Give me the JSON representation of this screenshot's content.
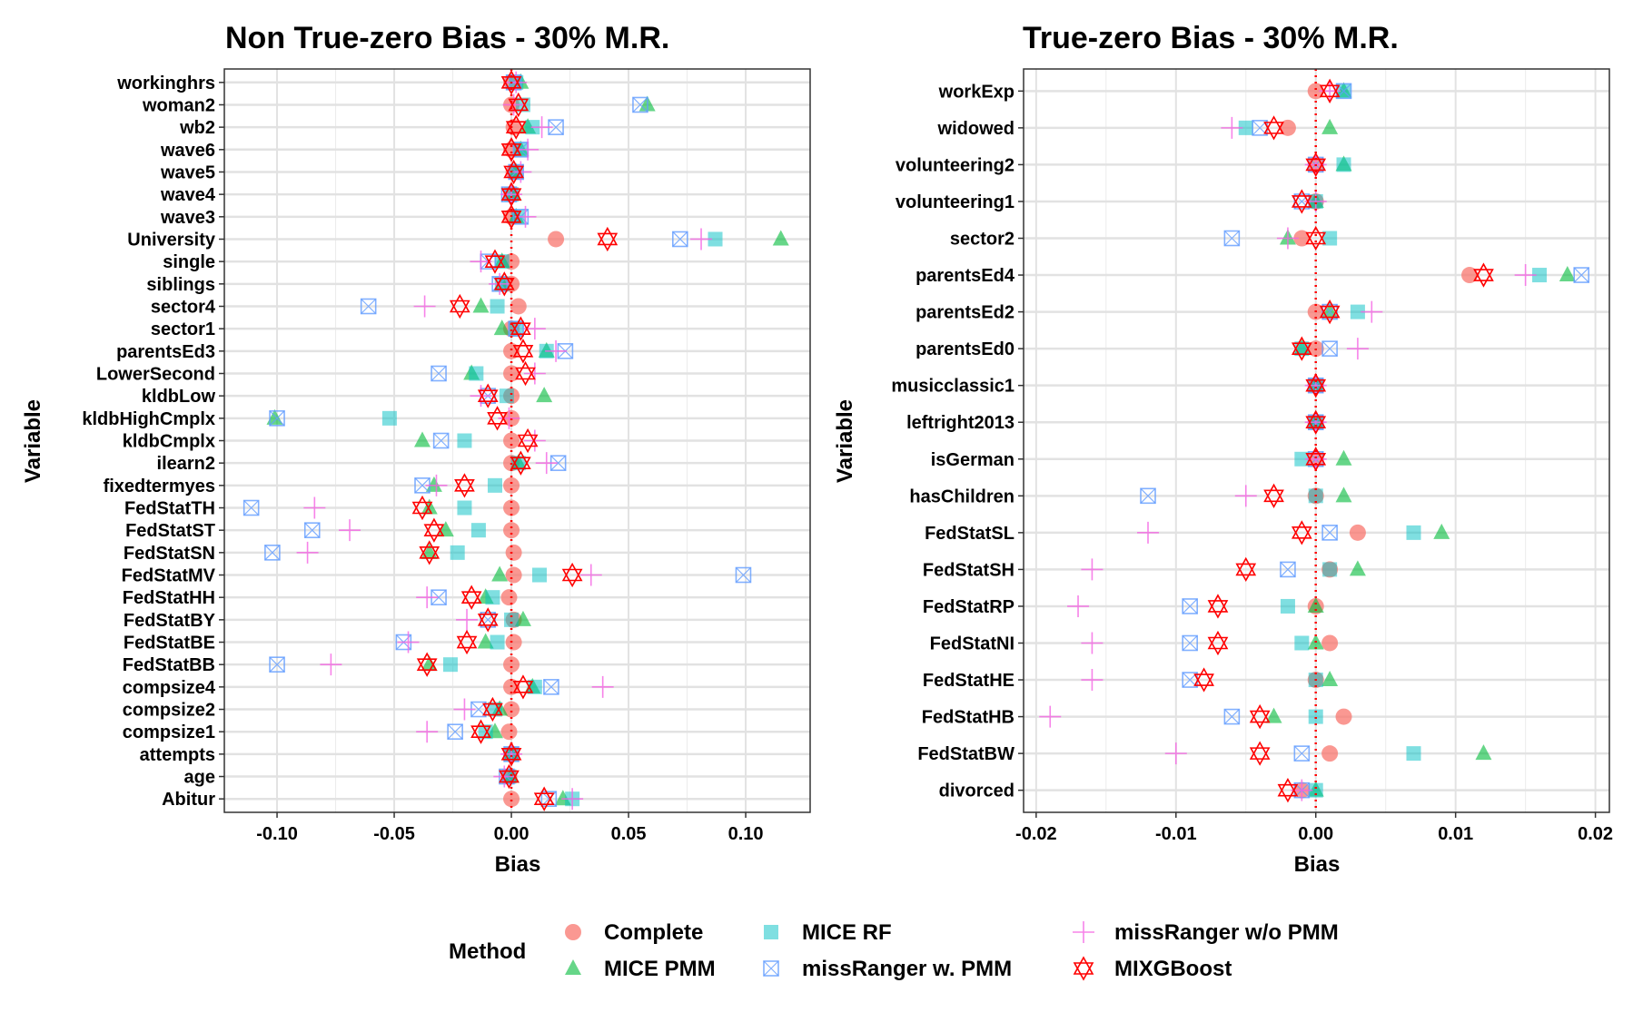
{
  "legend": {
    "title": "Method",
    "position": "bottom",
    "entries": [
      {
        "key": "complete",
        "label": "Complete",
        "shape": "circle",
        "color": "#F8766D"
      },
      {
        "key": "pmm",
        "label": "MICE PMM",
        "shape": "triangle",
        "color": "#00BA38"
      },
      {
        "key": "rf",
        "label": "MICE RF",
        "shape": "square",
        "color": "#00BFC4"
      },
      {
        "key": "mrpmm",
        "label": "missRanger w. PMM",
        "shape": "square-x",
        "color": "#619CFF"
      },
      {
        "key": "mrnopmm",
        "label": "missRanger w/o PMM",
        "shape": "plus",
        "color": "#F564E3"
      },
      {
        "key": "mixgb",
        "label": "MIXGBoost",
        "shape": "star-of-david",
        "color": "#FF0000"
      }
    ]
  },
  "chart_data": [
    {
      "type": "scatter",
      "title": "Non True-zero Bias - 30% M.R.",
      "xlabel": "Bias",
      "ylabel": "Variable",
      "xlim": [
        -0.1225,
        0.1275
      ],
      "xticks": [
        -0.1,
        -0.05,
        0.0,
        0.05,
        0.1
      ],
      "xtick_labels": [
        "-0.10",
        "-0.05",
        "0.00",
        "0.05",
        "0.10"
      ],
      "reference_line": {
        "x": 0,
        "color": "#FF0000",
        "style": "dotted"
      },
      "grid": true,
      "series_order": [
        "complete",
        "pmm",
        "rf",
        "mrpmm",
        "mrnopmm",
        "mixgb"
      ],
      "rows": [
        {
          "variable": "workinghrs",
          "values": [
            0,
            0.004,
            0.002,
            0.001,
            0.002,
            0
          ]
        },
        {
          "variable": "woman2",
          "values": [
            0,
            0.058,
            0.005,
            0.055,
            0.001,
            0.003
          ]
        },
        {
          "variable": "wb2",
          "values": [
            0.001,
            0.007,
            0.009,
            0.019,
            0.013,
            0.002
          ]
        },
        {
          "variable": "wave6",
          "values": [
            0,
            0.004,
            0.004,
            0.004,
            0.007,
            0
          ]
        },
        {
          "variable": "wave5",
          "values": [
            0.001,
            0.002,
            0.002,
            0.002,
            0.004,
            0.001
          ]
        },
        {
          "variable": "wave4",
          "values": [
            0,
            0.001,
            0,
            -0.001,
            0,
            0
          ]
        },
        {
          "variable": "wave3",
          "values": [
            0,
            0.002,
            0.003,
            0.004,
            0.006,
            0
          ]
        },
        {
          "variable": "University",
          "values": [
            0.019,
            0.115,
            0.087,
            0.072,
            0.081,
            0.041
          ]
        },
        {
          "variable": "single",
          "values": [
            0,
            -0.004,
            -0.004,
            -0.01,
            -0.013,
            -0.007
          ]
        },
        {
          "variable": "siblings",
          "values": [
            0,
            -0.004,
            -0.004,
            -0.005,
            -0.005,
            -0.003
          ]
        },
        {
          "variable": "sector4",
          "values": [
            0.003,
            -0.013,
            -0.006,
            -0.061,
            -0.037,
            -0.022
          ]
        },
        {
          "variable": "sector1",
          "values": [
            0,
            -0.004,
            0.002,
            0.002,
            0.01,
            0.004
          ]
        },
        {
          "variable": "parentsEd3",
          "values": [
            0,
            0.015,
            0.015,
            0.023,
            0.019,
            0.005
          ]
        },
        {
          "variable": "LowerSecond",
          "values": [
            0,
            -0.017,
            -0.015,
            -0.031,
            0.01,
            0.006
          ]
        },
        {
          "variable": "kldbLow",
          "values": [
            0,
            0.014,
            -0.002,
            -0.01,
            -0.013,
            -0.01
          ]
        },
        {
          "variable": "kldbHighCmplx",
          "values": [
            0,
            -0.101,
            -0.052,
            -0.1,
            -0.001,
            -0.006
          ]
        },
        {
          "variable": "kldbCmplx",
          "values": [
            0,
            -0.038,
            -0.02,
            -0.03,
            0.01,
            0.007
          ]
        },
        {
          "variable": "ilearn2",
          "values": [
            0,
            0.003,
            0.003,
            0.02,
            0.015,
            0.004
          ]
        },
        {
          "variable": "fixedtermyes",
          "values": [
            0,
            -0.033,
            -0.007,
            -0.038,
            -0.032,
            -0.02
          ]
        },
        {
          "variable": "FedStatTH",
          "values": [
            0,
            -0.035,
            -0.02,
            -0.111,
            -0.084,
            -0.038
          ]
        },
        {
          "variable": "FedStatST",
          "values": [
            0,
            -0.028,
            -0.014,
            -0.085,
            -0.069,
            -0.033
          ]
        },
        {
          "variable": "FedStatSN",
          "values": [
            0.001,
            -0.035,
            -0.023,
            -0.102,
            -0.087,
            -0.035
          ]
        },
        {
          "variable": "FedStatMV",
          "values": [
            0.001,
            -0.005,
            0.012,
            0.099,
            0.034,
            0.026
          ]
        },
        {
          "variable": "FedStatHH",
          "values": [
            -0.001,
            -0.011,
            -0.008,
            -0.031,
            -0.036,
            -0.017
          ]
        },
        {
          "variable": "FedStatBY",
          "values": [
            0.001,
            0.005,
            0,
            -0.01,
            -0.019,
            -0.01
          ]
        },
        {
          "variable": "FedStatBE",
          "values": [
            0.001,
            -0.011,
            -0.006,
            -0.046,
            -0.044,
            -0.019
          ]
        },
        {
          "variable": "FedStatBB",
          "values": [
            0,
            -0.035,
            -0.026,
            -0.1,
            -0.077,
            -0.036
          ]
        },
        {
          "variable": "compsize4",
          "values": [
            0,
            0.009,
            0.01,
            0.017,
            0.039,
            0.005
          ]
        },
        {
          "variable": "compsize2",
          "values": [
            0,
            -0.005,
            -0.007,
            -0.014,
            -0.02,
            -0.008
          ]
        },
        {
          "variable": "compsize1",
          "values": [
            -0.001,
            -0.007,
            -0.011,
            -0.024,
            -0.036,
            -0.013
          ]
        },
        {
          "variable": "attempts",
          "values": [
            0,
            0,
            0,
            0,
            0,
            0
          ]
        },
        {
          "variable": "age",
          "values": [
            -0.001,
            0,
            -0.001,
            -0.002,
            -0.003,
            -0.001
          ]
        },
        {
          "variable": "Abitur",
          "values": [
            0,
            0.022,
            0.026,
            0.016,
            0.026,
            0.014
          ]
        }
      ]
    },
    {
      "type": "scatter",
      "title": "True-zero Bias - 30% M.R.",
      "xlabel": "Bias",
      "ylabel": "Variable",
      "xlim": [
        -0.0209,
        0.021
      ],
      "xticks": [
        -0.02,
        -0.01,
        0.0,
        0.01,
        0.02
      ],
      "xtick_labels": [
        "-0.02",
        "-0.01",
        "0.00",
        "0.01",
        "0.02"
      ],
      "reference_line": {
        "x": 0,
        "color": "#FF0000",
        "style": "dotted"
      },
      "grid": true,
      "series_order": [
        "complete",
        "pmm",
        "rf",
        "mrpmm",
        "mrnopmm",
        "mixgb"
      ],
      "rows": [
        {
          "variable": "workExp",
          "values": [
            0,
            0.002,
            0.002,
            0.002,
            0.001,
            0.001
          ]
        },
        {
          "variable": "widowed",
          "values": [
            -0.002,
            0.001,
            -0.005,
            -0.004,
            -0.006,
            -0.003
          ]
        },
        {
          "variable": "volunteering2",
          "values": [
            0,
            0.002,
            0.002,
            0,
            0,
            0
          ]
        },
        {
          "variable": "volunteering1",
          "values": [
            0,
            0,
            0,
            -0.001,
            0,
            -0.001
          ]
        },
        {
          "variable": "sector2",
          "values": [
            -0.001,
            -0.002,
            0.001,
            -0.006,
            -0.002,
            0
          ]
        },
        {
          "variable": "parentsEd4",
          "values": [
            0.011,
            0.018,
            0.016,
            0.019,
            0.015,
            0.012
          ]
        },
        {
          "variable": "parentsEd2",
          "values": [
            0,
            0.001,
            0.003,
            0.001,
            0.004,
            0.001
          ]
        },
        {
          "variable": "parentsEd0",
          "values": [
            0,
            -0.001,
            -0.001,
            0.001,
            0.003,
            -0.001
          ]
        },
        {
          "variable": "musicclassic1",
          "values": [
            0,
            0,
            0,
            0,
            0,
            0
          ]
        },
        {
          "variable": "leftright2013",
          "values": [
            0,
            0,
            0,
            0,
            0,
            0
          ]
        },
        {
          "variable": "isGerman",
          "values": [
            0,
            0.002,
            -0.001,
            0,
            0,
            0
          ]
        },
        {
          "variable": "hasChildren",
          "values": [
            0,
            0.002,
            0,
            -0.012,
            -0.005,
            -0.003
          ]
        },
        {
          "variable": "FedStatSL",
          "values": [
            0.003,
            0.009,
            0.007,
            0.001,
            -0.012,
            -0.001
          ]
        },
        {
          "variable": "FedStatSH",
          "values": [
            0.001,
            0.003,
            0.001,
            -0.002,
            -0.016,
            -0.005
          ]
        },
        {
          "variable": "FedStatRP",
          "values": [
            0,
            0,
            -0.002,
            -0.009,
            -0.017,
            -0.007
          ]
        },
        {
          "variable": "FedStatNI",
          "values": [
            0.001,
            0,
            -0.001,
            -0.009,
            -0.016,
            -0.007
          ]
        },
        {
          "variable": "FedStatHE",
          "values": [
            0,
            0.001,
            0,
            -0.009,
            -0.016,
            -0.008
          ]
        },
        {
          "variable": "FedStatHB",
          "values": [
            0.002,
            -0.003,
            0,
            -0.006,
            -0.019,
            -0.004
          ]
        },
        {
          "variable": "FedStatBW",
          "values": [
            0.001,
            0.012,
            0.007,
            -0.001,
            -0.01,
            -0.004
          ]
        },
        {
          "variable": "divorced",
          "values": [
            -0.001,
            0,
            0,
            -0.001,
            -0.001,
            -0.002
          ]
        }
      ]
    }
  ]
}
